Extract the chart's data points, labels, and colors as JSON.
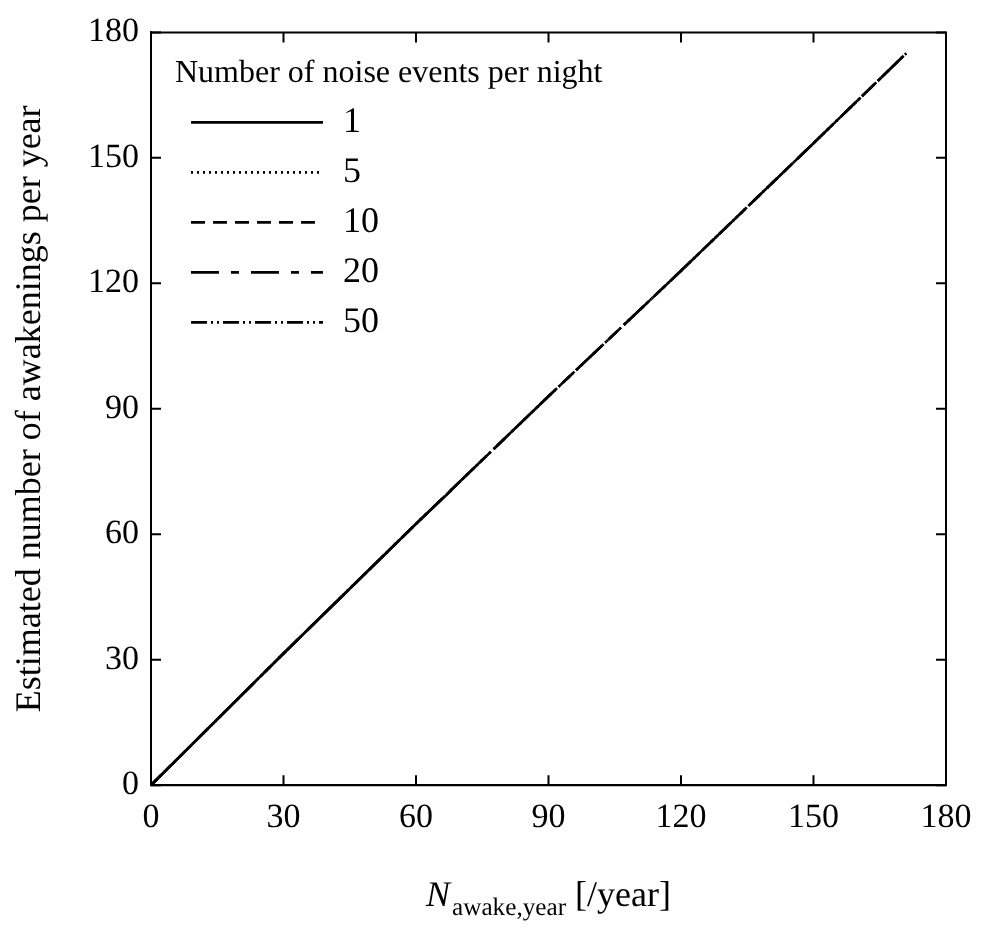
{
  "chart_data": {
    "type": "line",
    "xlabel": "N$_{awake,year}$ [/year]",
    "ylabel": "Estimated number of awakenings per year",
    "legend_title": "Number of noise events per night",
    "legend": "top left",
    "marker": "none",
    "grid": false,
    "xlim": [
      0,
      180
    ],
    "xticks": [
      0,
      30,
      60,
      90,
      120,
      150,
      180
    ],
    "ylim": [
      0,
      180
    ],
    "yticks": [
      0,
      30,
      60,
      90,
      120,
      150,
      180
    ],
    "series": [
      {
        "name": "1",
        "color": "#000000",
        "line_style": "solid",
        "x": [
          0,
          30,
          60,
          68
        ],
        "values": [
          0,
          31.5,
          62.5,
          70.5
        ]
      },
      {
        "name": "5",
        "color": "#000000",
        "line_style": "dotted",
        "x": [
          0,
          30,
          60,
          90,
          120,
          150,
          171
        ],
        "values": [
          0,
          31.5,
          62.5,
          93,
          123,
          153.5,
          175
        ]
      },
      {
        "name": "10",
        "color": "#000000",
        "line_style": "dashed",
        "x": [
          0,
          30,
          60,
          90,
          120,
          150,
          171
        ],
        "values": [
          0,
          31.5,
          62.5,
          93,
          123,
          153.5,
          175
        ]
      },
      {
        "name": "20",
        "color": "#000000",
        "line_style": "longdash",
        "x": [
          0,
          30,
          60,
          90,
          120,
          150,
          171
        ],
        "values": [
          0,
          31.5,
          62.5,
          93,
          123,
          153.5,
          175
        ]
      },
      {
        "name": "50",
        "color": "#000000",
        "line_style": "dashdotdot",
        "x": [
          0,
          30,
          60,
          90,
          120,
          150,
          171
        ],
        "values": [
          0,
          31.5,
          62.5,
          93,
          123,
          153.5,
          175
        ]
      }
    ]
  }
}
